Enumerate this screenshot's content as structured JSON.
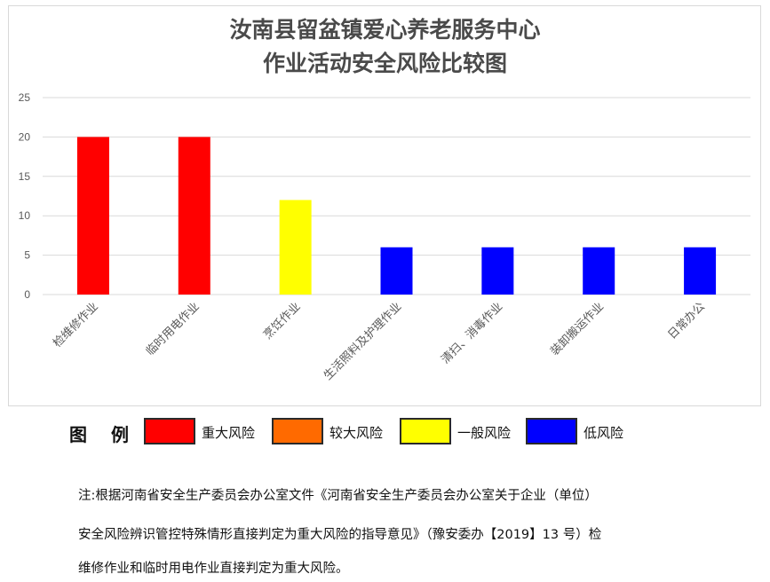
{
  "chart_data": {
    "type": "bar",
    "title_line1": "汝南县留盆镇爱心养老服务中心",
    "title_line2": "作业活动安全风险比较图",
    "categories": [
      "检维修作业",
      "临时用电作业",
      "烹饪作业",
      "生活照料及护理作业",
      "清扫、消毒作业",
      "装卸搬运作业",
      "日常办公"
    ],
    "values": [
      20,
      20,
      12,
      6,
      6,
      6,
      6
    ],
    "bar_levels": [
      "重大风险",
      "重大风险",
      "一般风险",
      "低风险",
      "低风险",
      "低风险",
      "低风险"
    ],
    "ylim": [
      0,
      25
    ],
    "yticks": [
      "0",
      "5",
      "10",
      "15",
      "20",
      "25"
    ],
    "grid": true
  },
  "legend": {
    "title": "图 例",
    "items": [
      {
        "label": "重大风险",
        "color": "#ff0000"
      },
      {
        "label": "较大风险",
        "color": "#ff6a00"
      },
      {
        "label": "一般风险",
        "color": "#ffff00"
      },
      {
        "label": "低风险",
        "color": "#0000ff"
      }
    ]
  },
  "note": {
    "line1": "注:根据河南省安全生产委员会办公室文件《河南省安全生产委员会办公室关于企业（单位）",
    "line2": "安全风险辨识管控特殊情形直接判定为重大风险的指导意见》（豫安委办【2019】13 号）检",
    "line3": "维修作业和临时用电作业直接判定为重大风险。"
  }
}
